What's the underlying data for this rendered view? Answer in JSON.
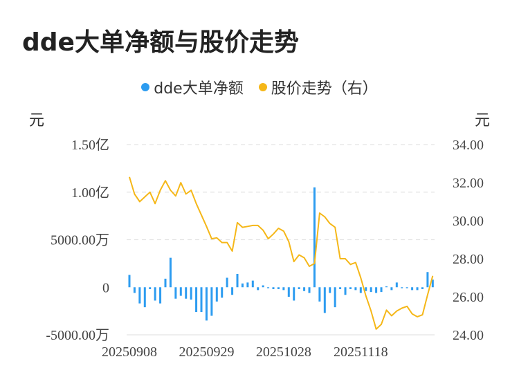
{
  "title": "dde大单净额与股价走势",
  "legend": [
    {
      "label": "dde大单净额",
      "color": "#2d9cf0"
    },
    {
      "label": "股价走势（右）",
      "color": "#f5b718"
    }
  ],
  "unit_left": "元",
  "unit_right": "元",
  "chart_data": {
    "type": "bar+line",
    "x_tick_labels": [
      "20250908",
      "20250929",
      "20251028",
      "20251118"
    ],
    "x_tick_indices": [
      0,
      15,
      30,
      45
    ],
    "left_axis": {
      "min": -5000,
      "max": 15000,
      "ticks": [
        15000,
        10000,
        5000,
        0,
        -5000
      ],
      "tick_labels": [
        "1.50亿",
        "1.00亿",
        "5000.00万",
        "0",
        "-5000.00万"
      ],
      "unit": "万元"
    },
    "right_axis": {
      "min": 24,
      "max": 34,
      "ticks": [
        34,
        32,
        30,
        28,
        26,
        24
      ],
      "tick_labels": [
        "34.00",
        "32.00",
        "30.00",
        "28.00",
        "26.00",
        "24.00"
      ],
      "unit": "元"
    },
    "grid": true,
    "legend_position": "top-center",
    "series": [
      {
        "name": "dde大单净额",
        "type": "bar",
        "color": "#2d9cf0",
        "values": [
          1300,
          -600,
          -1700,
          -2100,
          -200,
          -1400,
          -1700,
          900,
          3100,
          -1200,
          -900,
          -1200,
          -1300,
          -2600,
          -2600,
          -3500,
          -3000,
          -1500,
          -1100,
          1000,
          -800,
          1400,
          400,
          500,
          700,
          -300,
          200,
          -100,
          -200,
          -200,
          -300,
          -1000,
          -1400,
          -200,
          -400,
          -600,
          10500,
          -1500,
          -2700,
          -600,
          -2100,
          -200,
          -800,
          -200,
          -300,
          -600,
          -400,
          -500,
          -600,
          -500,
          100,
          -300,
          500,
          -100,
          -100,
          -300,
          -300,
          -200,
          1600,
          800
        ]
      },
      {
        "name": "股价走势（右）",
        "type": "line",
        "color": "#f5b718",
        "values": [
          32.3,
          31.4,
          31.0,
          31.25,
          31.5,
          30.9,
          31.6,
          32.1,
          31.6,
          31.3,
          32.0,
          31.4,
          31.6,
          30.9,
          30.3,
          29.7,
          29.05,
          29.1,
          28.85,
          28.85,
          28.4,
          29.9,
          29.65,
          29.7,
          29.75,
          29.75,
          29.5,
          29.05,
          29.3,
          29.6,
          29.45,
          28.9,
          27.85,
          28.2,
          28.05,
          27.6,
          27.75,
          30.4,
          30.2,
          29.85,
          29.65,
          28.0,
          28.0,
          27.7,
          27.8,
          27.0,
          26.05,
          25.25,
          24.3,
          24.55,
          25.3,
          25.0,
          25.25,
          25.4,
          25.5,
          25.1,
          24.95,
          25.05,
          26.1,
          27.1
        ]
      }
    ]
  }
}
